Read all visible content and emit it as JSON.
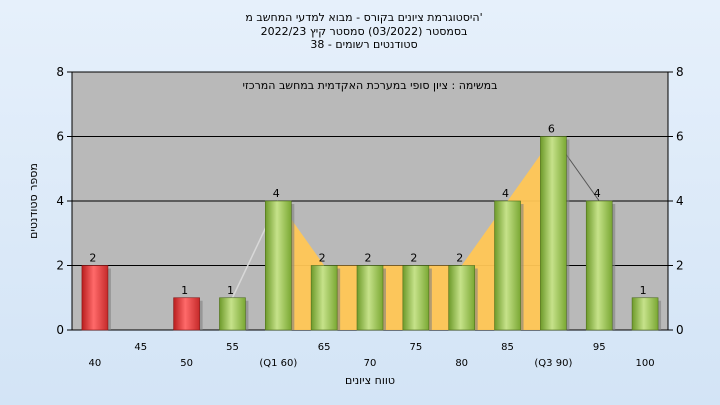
{
  "chart_data": {
    "type": "bar",
    "title_lines": [
      "היסטוגרמת ציונים בקורס - מבוא למדעי המחשב מ'",
      "בסמסטר  (03/2022)  סמסטר קיץ  2022/23",
      "סטודנטים רשומים - 38"
    ],
    "subtitle": "במשימה : ציון סופי במערכת האקדמית במחשב המרכזי",
    "xlabel": "טווח ציונים",
    "ylabel": "מספר סטודנטים",
    "ylim": [
      0,
      8
    ],
    "yticks": [
      0,
      2,
      4,
      6,
      8
    ],
    "categories": [
      "40",
      "45",
      "50",
      "55",
      "(Q1 60)",
      "65",
      "70",
      "75",
      "80",
      "85",
      "(Q3 90)",
      "95",
      "100"
    ],
    "values": [
      2,
      0,
      1,
      1,
      4,
      2,
      2,
      2,
      2,
      4,
      6,
      4,
      1
    ],
    "bar_colors": [
      "#e03b3b",
      "#e03b3b",
      "#e03b3b",
      "#8cbf3f",
      "#8cbf3f",
      "#8cbf3f",
      "#8cbf3f",
      "#8cbf3f",
      "#8cbf3f",
      "#8cbf3f",
      "#8cbf3f",
      "#8cbf3f",
      "#8cbf3f"
    ],
    "area_range": [
      "(Q1 60)",
      "(Q3 90)"
    ],
    "colors": {
      "plot_bg": "#b9b9b9",
      "area_fill": "#ffc655",
      "grid": "#000000",
      "pass": "#8cbf3f",
      "fail": "#e03b3b"
    }
  }
}
